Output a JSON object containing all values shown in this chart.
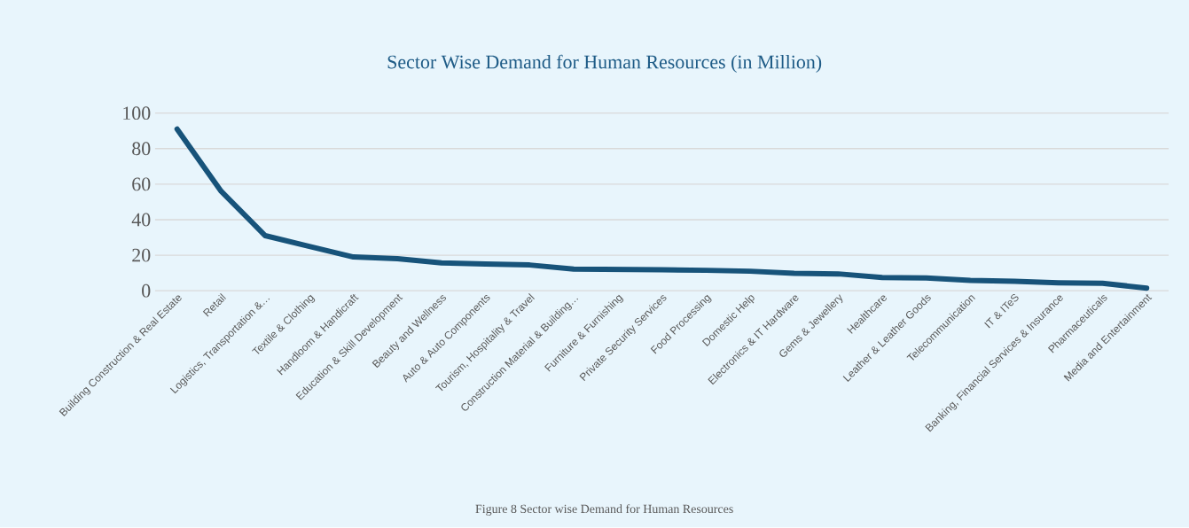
{
  "chart_data": {
    "type": "line",
    "title": "Sector Wise Demand for Human Resources (in Million)",
    "categories": [
      "Building Construction & Real Estate",
      "Retail",
      "Logistics, Transportation &…",
      "Textile & Clothing",
      "Handloom & Handicraft",
      "Education & Skill Development",
      "Beauty and Wellness",
      "Auto & Auto Components",
      "Tourism, Hospitality & Travel",
      "Construction Material & Building…",
      "Furniture & Furnishing",
      "Private Security Services",
      "Food Processing",
      "Domestic Help",
      "Electronics & IT Hardware",
      "Gems & Jewellery",
      "Healthcare",
      "Leather & Leather Goods",
      "Telecommunication",
      "IT & ITeS",
      "Banking, Financial Services & Insurance",
      "Pharmaceuticals",
      "Media and Entertainment"
    ],
    "values": [
      91,
      56,
      31,
      25,
      19,
      18,
      15.7,
      15,
      14.5,
      12.2,
      12,
      11.8,
      11.5,
      11,
      9.8,
      9.5,
      7.5,
      7.2,
      5.8,
      5.3,
      4.5,
      4.2,
      1.5
    ],
    "color": "#17537a",
    "ylim": [
      0,
      100
    ],
    "yticks": [
      0,
      20,
      40,
      60,
      80,
      100
    ],
    "grid": "y",
    "annotations": [
      "Figure 8 Sector wise Demand for Human Resources"
    ]
  }
}
